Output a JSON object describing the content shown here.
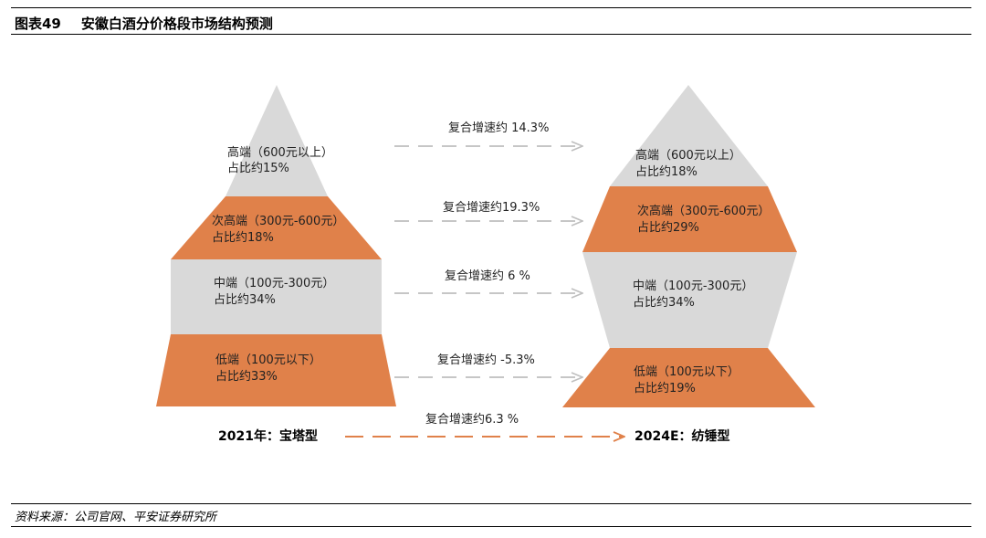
{
  "header": {
    "figure_no": "图表49",
    "title": "安徽白酒分价格段市场结构预测"
  },
  "colors": {
    "gray_segment": "#d9d9d9",
    "orange_segment": "#e0814a",
    "gray_arrow": "#bfbfbf",
    "orange_arrow": "#e0814a"
  },
  "pyramid_2021": {
    "label": "2021年：宝塔型",
    "segments": [
      {
        "name": "高端（600元以上）",
        "share": "占比约15%",
        "color": "gray"
      },
      {
        "name": "次高端（300元-600元）",
        "share": "占比约18%",
        "color": "orange"
      },
      {
        "name": "中端（100元-300元）",
        "share": "占比约34%",
        "color": "gray"
      },
      {
        "name": "低端（100元以下）",
        "share": "占比约33%",
        "color": "orange"
      }
    ]
  },
  "spindle_2024": {
    "label": "2024E：纺锤型",
    "segments": [
      {
        "name": "高端（600元以上）",
        "share": "占比约18%",
        "color": "gray"
      },
      {
        "name": "次高端（300元-600元）",
        "share": "占比约29%",
        "color": "orange"
      },
      {
        "name": "中端（100元-300元）",
        "share": "占比约34%",
        "color": "gray"
      },
      {
        "name": "低端（100元以下）",
        "share": "占比约19%",
        "color": "orange"
      }
    ]
  },
  "growth_arrows": [
    {
      "label": "复合增速约 14.3%"
    },
    {
      "label": "复合增速约19.3%"
    },
    {
      "label": "复合增速约 6 %"
    },
    {
      "label": "复合增速约 -5.3%"
    }
  ],
  "overall_arrow": {
    "label": "复合增速约6.3 %"
  },
  "footer": {
    "source": "资料来源：公司官网、平安证券研究所"
  }
}
